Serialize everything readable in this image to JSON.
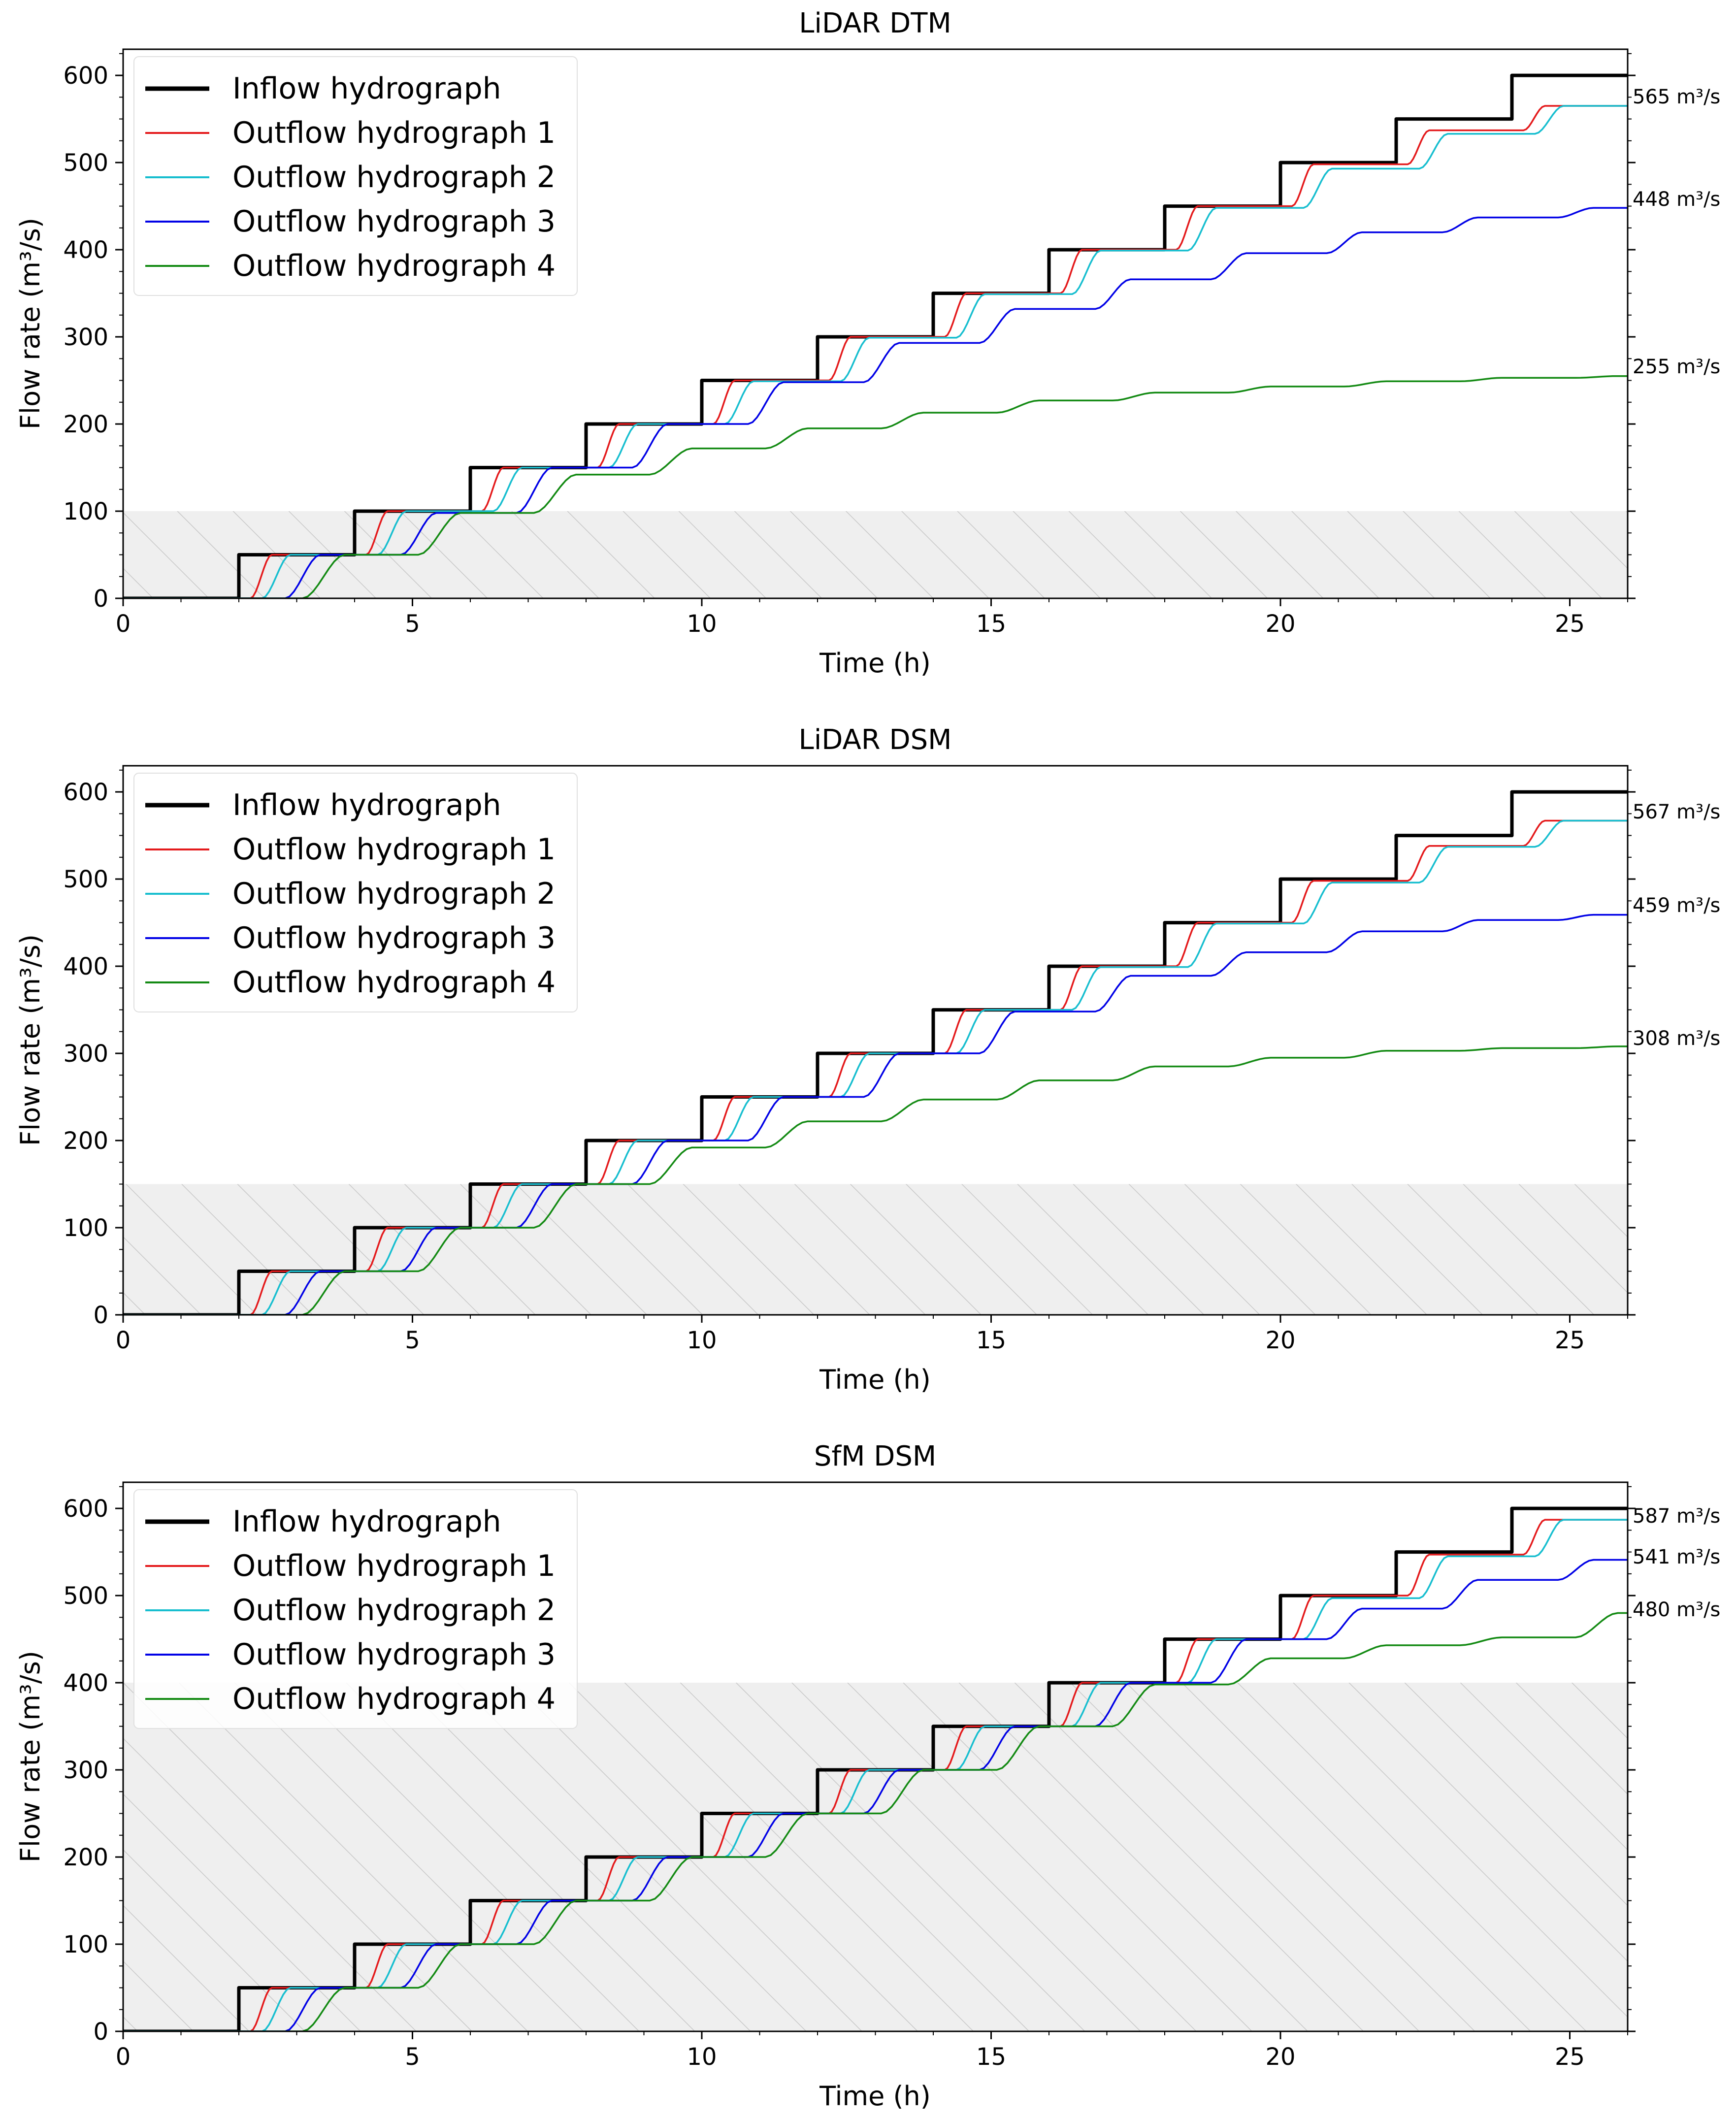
{
  "chart_data": [
    {
      "type": "line",
      "title": "LiDAR DTM",
      "xlabel": "Time (h)",
      "ylabel": "Flow rate (m³/s)",
      "xlim": [
        0,
        26
      ],
      "ylim": [
        0,
        630
      ],
      "xticks": [
        0,
        5,
        10,
        15,
        20,
        25
      ],
      "yticks": [
        0,
        100,
        200,
        300,
        400,
        500,
        600
      ],
      "grid": false,
      "legend_position": "top-left",
      "shaded_region_max": 100,
      "series": [
        {
          "name": "Inflow hydrograph",
          "color": "#000000",
          "lag": 0,
          "plateaus": [
            50,
            100,
            150,
            200,
            250,
            300,
            350,
            400,
            450,
            500,
            550,
            600
          ]
        },
        {
          "name": "Outflow hydrograph 1",
          "color": "#e41a1c",
          "lag": 0.2,
          "plateaus": [
            50,
            100,
            150,
            200,
            250,
            300,
            350,
            400,
            450,
            498,
            537,
            565
          ]
        },
        {
          "name": "Outflow hydrograph 2",
          "color": "#17becf",
          "lag": 0.4,
          "plateaus": [
            50,
            100,
            150,
            200,
            249,
            299,
            349,
            399,
            448,
            493,
            533,
            565
          ]
        },
        {
          "name": "Outflow hydrograph 3",
          "color": "#0000e6",
          "lag": 0.8,
          "plateaus": [
            50,
            98,
            150,
            200,
            248,
            293,
            332,
            366,
            396,
            420,
            437,
            448
          ]
        },
        {
          "name": "Outflow hydrograph 4",
          "color": "#138a13",
          "lag": 1.1,
          "plateaus": [
            50,
            98,
            142,
            172,
            195,
            213,
            227,
            236,
            243,
            249,
            253,
            255
          ]
        }
      ],
      "annotations": [
        "565 m³/s",
        "448 m³/s",
        "255 m³/s"
      ]
    },
    {
      "type": "line",
      "title": "LiDAR DSM",
      "xlabel": "Time (h)",
      "ylabel": "Flow rate (m³/s)",
      "xlim": [
        0,
        26
      ],
      "ylim": [
        0,
        630
      ],
      "xticks": [
        0,
        5,
        10,
        15,
        20,
        25
      ],
      "yticks": [
        0,
        100,
        200,
        300,
        400,
        500,
        600
      ],
      "grid": false,
      "legend_position": "top-left",
      "shaded_region_max": 150,
      "series": [
        {
          "name": "Inflow hydrograph",
          "color": "#000000",
          "lag": 0,
          "plateaus": [
            50,
            100,
            150,
            200,
            250,
            300,
            350,
            400,
            450,
            500,
            550,
            600
          ]
        },
        {
          "name": "Outflow hydrograph 1",
          "color": "#e41a1c",
          "lag": 0.2,
          "plateaus": [
            50,
            100,
            150,
            200,
            250,
            300,
            350,
            400,
            450,
            498,
            538,
            567
          ]
        },
        {
          "name": "Outflow hydrograph 2",
          "color": "#17becf",
          "lag": 0.4,
          "plateaus": [
            50,
            100,
            150,
            200,
            250,
            300,
            350,
            399,
            449,
            496,
            537,
            567
          ]
        },
        {
          "name": "Outflow hydrograph 3",
          "color": "#0000e6",
          "lag": 0.8,
          "plateaus": [
            50,
            100,
            150,
            200,
            250,
            300,
            348,
            389,
            416,
            440,
            453,
            459
          ]
        },
        {
          "name": "Outflow hydrograph 4",
          "color": "#138a13",
          "lag": 1.1,
          "plateaus": [
            50,
            100,
            150,
            192,
            222,
            247,
            269,
            285,
            295,
            303,
            306,
            308
          ]
        }
      ],
      "annotations": [
        "567 m³/s",
        "459 m³/s",
        "308 m³/s"
      ]
    },
    {
      "type": "line",
      "title": "SfM DSM",
      "xlabel": "Time (h)",
      "ylabel": "Flow rate (m³/s)",
      "xlim": [
        0,
        26
      ],
      "ylim": [
        0,
        630
      ],
      "xticks": [
        0,
        5,
        10,
        15,
        20,
        25
      ],
      "yticks": [
        0,
        100,
        200,
        300,
        400,
        500,
        600
      ],
      "grid": false,
      "legend_position": "top-left",
      "shaded_region_max": 400,
      "series": [
        {
          "name": "Inflow hydrograph",
          "color": "#000000",
          "lag": 0,
          "plateaus": [
            50,
            100,
            150,
            200,
            250,
            300,
            350,
            400,
            450,
            500,
            550,
            600
          ]
        },
        {
          "name": "Outflow hydrograph 1",
          "color": "#e41a1c",
          "lag": 0.2,
          "plateaus": [
            50,
            100,
            150,
            200,
            250,
            300,
            350,
            400,
            450,
            500,
            547,
            587
          ]
        },
        {
          "name": "Outflow hydrograph 2",
          "color": "#17becf",
          "lag": 0.4,
          "plateaus": [
            50,
            100,
            150,
            200,
            250,
            300,
            350,
            400,
            450,
            497,
            545,
            587
          ]
        },
        {
          "name": "Outflow hydrograph 3",
          "color": "#0000e6",
          "lag": 0.8,
          "plateaus": [
            50,
            100,
            150,
            200,
            250,
            300,
            350,
            400,
            450,
            485,
            518,
            541
          ]
        },
        {
          "name": "Outflow hydrograph 4",
          "color": "#138a13",
          "lag": 1.1,
          "plateaus": [
            50,
            100,
            150,
            200,
            250,
            300,
            350,
            398,
            428,
            443,
            452,
            480
          ]
        }
      ],
      "annotations": [
        "587 m³/s",
        "541 m³/s",
        "480 m³/s"
      ]
    }
  ]
}
